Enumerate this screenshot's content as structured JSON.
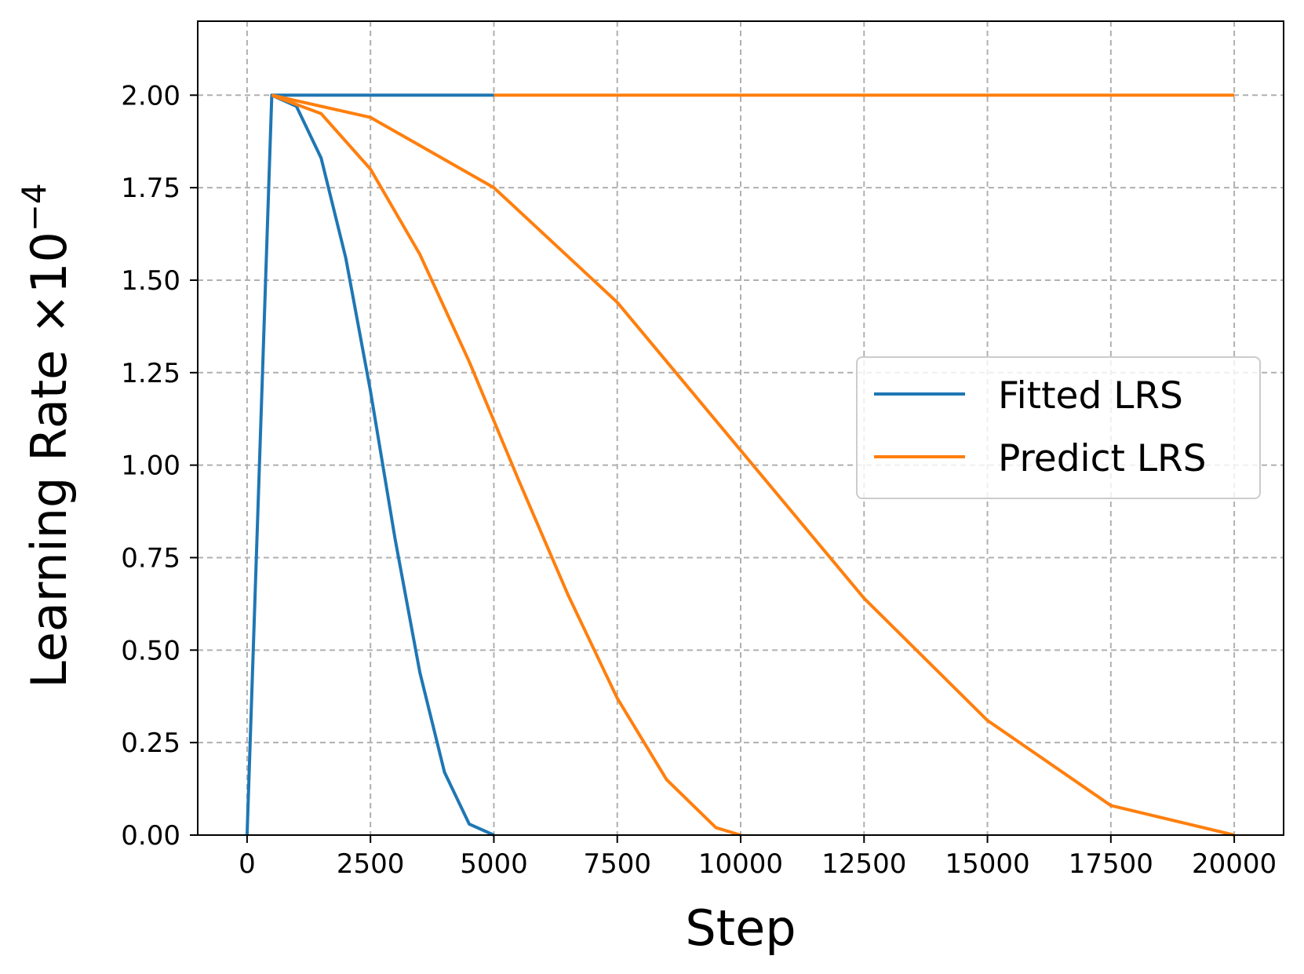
{
  "chart_data": {
    "type": "line",
    "xlabel": "Step",
    "ylabel": {
      "base": "Learning Rate ×10",
      "exponent": "−4"
    },
    "xlim": [
      -1000,
      21000
    ],
    "ylim": [
      0,
      2.2
    ],
    "xticks": [
      0,
      2500,
      5000,
      7500,
      10000,
      12500,
      15000,
      17500,
      20000
    ],
    "xtick_labels": [
      "0",
      "2500",
      "5000",
      "7500",
      "10000",
      "12500",
      "15000",
      "17500",
      "20000"
    ],
    "yticks": [
      0,
      0.25,
      0.5,
      0.75,
      1.0,
      1.25,
      1.5,
      1.75,
      2.0
    ],
    "ytick_labels": [
      "0.00",
      "0.25",
      "0.50",
      "0.75",
      "1.00",
      "1.25",
      "1.50",
      "1.75",
      "2.00"
    ],
    "grid": true,
    "legend_position": "center-right",
    "colors": {
      "fitted": "#1f77b4",
      "predict": "#ff7f0e"
    },
    "legend": [
      {
        "label": "Fitted LRS",
        "color": "#1f77b4"
      },
      {
        "label": "Predict LRS",
        "color": "#ff7f0e"
      }
    ],
    "series": [
      {
        "name": "Fitted LRS",
        "color": "#1f77b4",
        "x": [
          0,
          500,
          1000,
          1500,
          2000,
          2500,
          3000,
          3500,
          4000,
          4500,
          5000
        ],
        "y": [
          0,
          2.0,
          1.97,
          1.83,
          1.56,
          1.2,
          0.8,
          0.44,
          0.17,
          0.03,
          0.0
        ]
      },
      {
        "name": "Fitted LRS",
        "color": "#1f77b4",
        "x": [
          500,
          5000
        ],
        "y": [
          2.0,
          2.0
        ]
      },
      {
        "name": "Predict LRS",
        "color": "#ff7f0e",
        "x": [
          500,
          1500,
          2500,
          3500,
          4500,
          5500,
          6500,
          7500,
          8500,
          9500,
          10000
        ],
        "y": [
          2.0,
          1.95,
          1.8,
          1.57,
          1.28,
          0.96,
          0.65,
          0.37,
          0.15,
          0.02,
          0.0
        ]
      },
      {
        "name": "Predict LRS",
        "color": "#ff7f0e",
        "x": [
          500,
          2500,
          5000,
          7500,
          10000,
          12500,
          15000,
          17500,
          20000
        ],
        "y": [
          2.0,
          1.94,
          1.75,
          1.44,
          1.04,
          0.64,
          0.31,
          0.08,
          0.0
        ]
      },
      {
        "name": "Predict LRS",
        "color": "#ff7f0e",
        "x": [
          5000,
          20000
        ],
        "y": [
          2.0,
          2.0
        ]
      }
    ]
  }
}
